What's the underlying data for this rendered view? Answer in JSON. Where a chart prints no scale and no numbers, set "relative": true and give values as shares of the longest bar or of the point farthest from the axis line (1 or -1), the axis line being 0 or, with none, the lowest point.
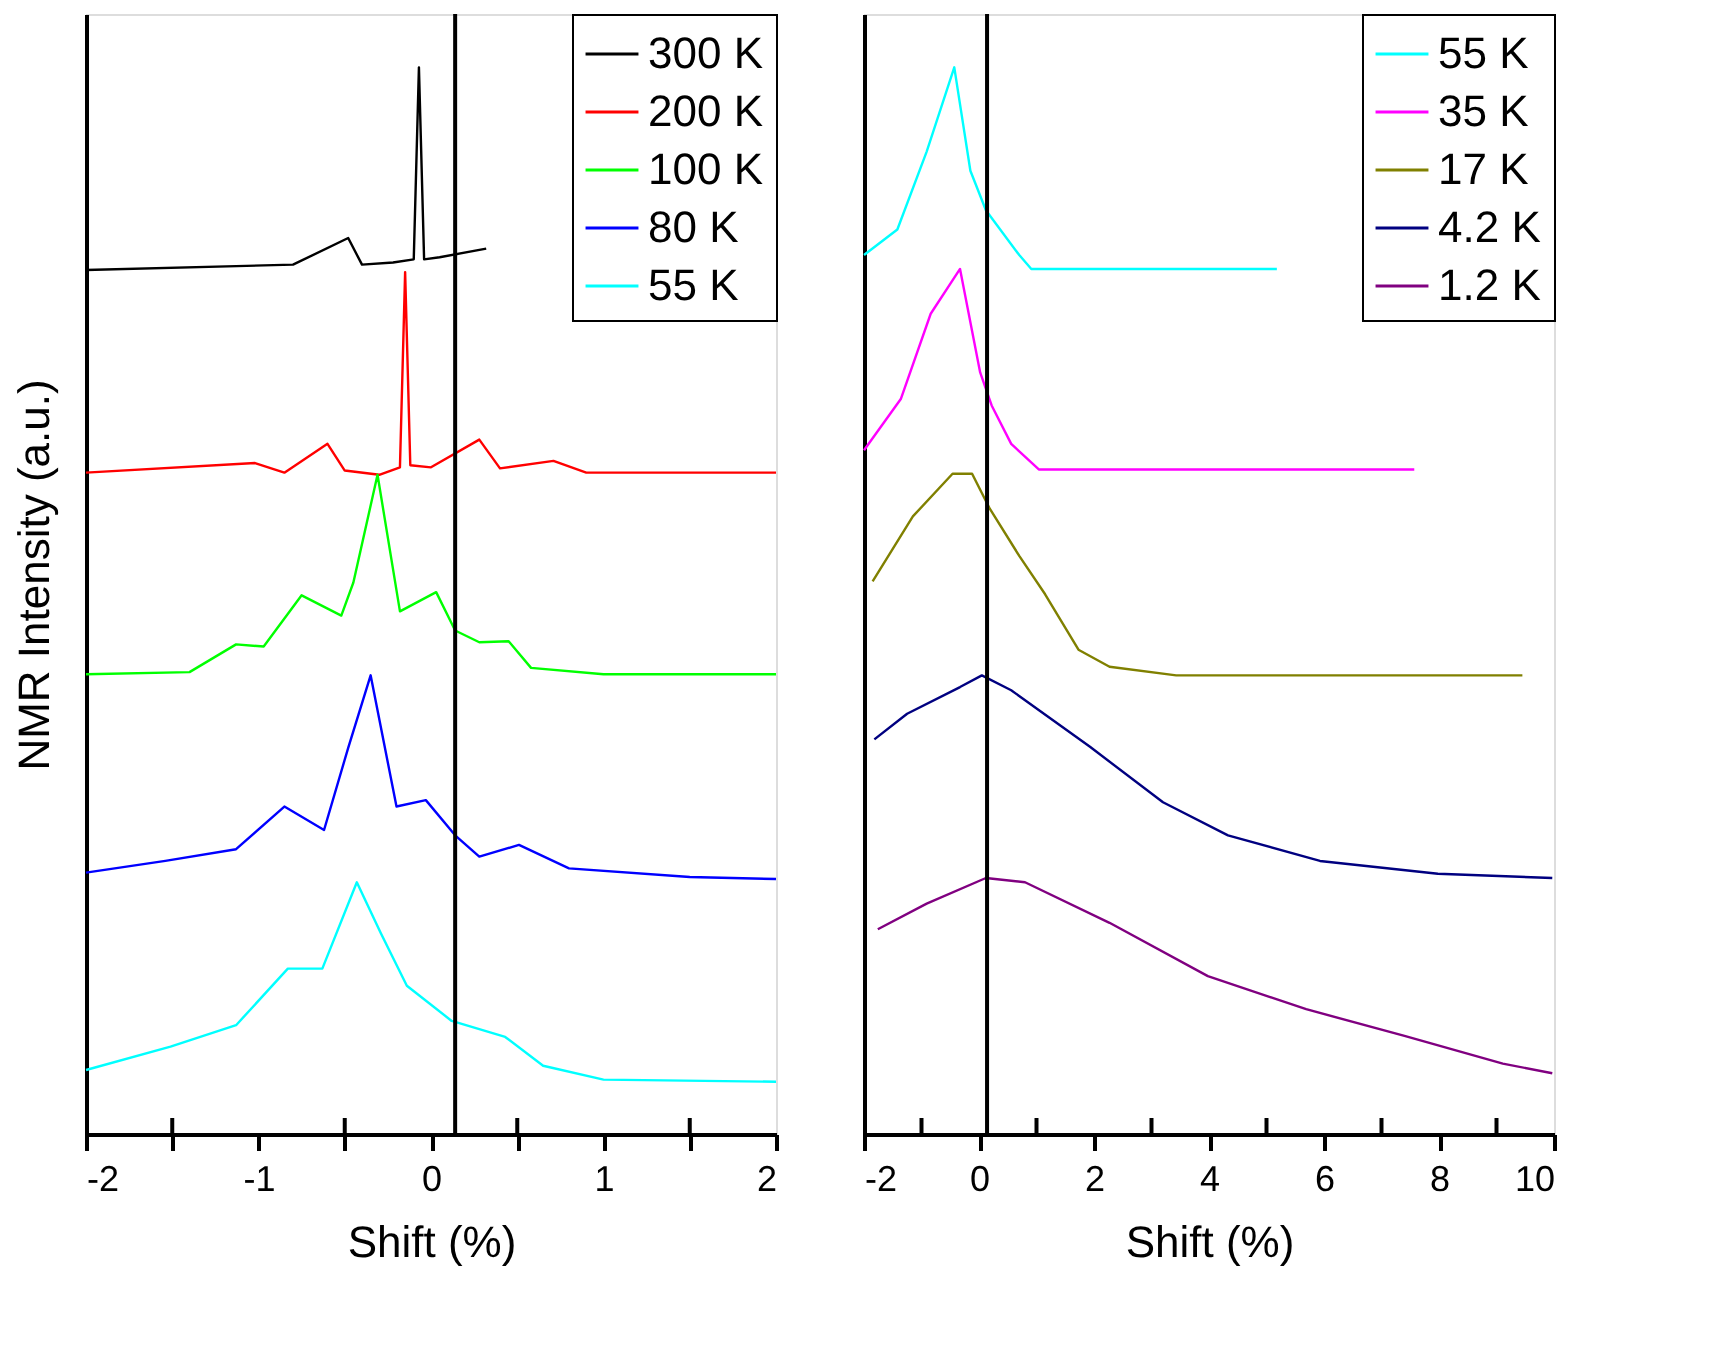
{
  "chart_data": [
    {
      "type": "line",
      "relative": true,
      "xlabel": "Shift (%)",
      "ylabel": "NMR Intensity (a.u.)",
      "xlim": [
        -2,
        2
      ],
      "xticks": [
        -2,
        {
          "value": -1.5,
          "label": null
        },
        -1,
        {
          "value": -0.5,
          "label": null
        },
        0,
        {
          "value": 0.5,
          "label": null
        },
        1,
        {
          "value": 1.5,
          "label": null
        },
        2
      ],
      "grid": false,
      "legend": "top right",
      "tick_labels": "x",
      "ref_lines": [
        {
          "axis": "x",
          "value": 0.14,
          "color": "#000000"
        }
      ],
      "series": [
        {
          "name": "300 K",
          "color": "#000000",
          "x": [
            -2,
            -0.8,
            -0.48,
            -0.4,
            -0.22,
            -0.1,
            -0.07,
            -0.04,
            0.05,
            0.32
          ],
          "values": [
            0.81,
            0.815,
            0.84,
            0.815,
            0.817,
            0.82,
            1.0,
            0.82,
            0.822,
            0.83
          ]
        },
        {
          "name": "200 K",
          "color": "#ff0000",
          "x": [
            -2,
            -1.02,
            -0.85,
            -0.6,
            -0.5,
            -0.3,
            -0.18,
            -0.15,
            -0.12,
            0.0,
            0.28,
            0.4,
            0.71,
            0.9,
            2.0
          ],
          "values": [
            0.62,
            0.629,
            0.62,
            0.647,
            0.622,
            0.618,
            0.625,
            0.808,
            0.627,
            0.625,
            0.651,
            0.624,
            0.631,
            0.62,
            0.62
          ]
        },
        {
          "name": "100 K",
          "color": "#00ff00",
          "x": [
            -2,
            -1.4,
            -1.13,
            -0.97,
            -0.75,
            -0.52,
            -0.45,
            -0.31,
            -0.18,
            0.03,
            0.14,
            0.28,
            0.45,
            0.58,
            1.0,
            2.0
          ],
          "values": [
            0.431,
            0.433,
            0.459,
            0.457,
            0.505,
            0.486,
            0.517,
            0.618,
            0.49,
            0.508,
            0.472,
            0.461,
            0.462,
            0.437,
            0.431,
            0.431
          ]
        },
        {
          "name": "80 K",
          "color": "#0000ff",
          "x": [
            -2,
            -1.54,
            -1.13,
            -0.85,
            -0.62,
            -0.48,
            -0.35,
            -0.2,
            -0.03,
            0.14,
            0.28,
            0.51,
            0.8,
            1.5,
            2.0
          ],
          "values": [
            0.245,
            0.256,
            0.267,
            0.307,
            0.285,
            0.362,
            0.43,
            0.307,
            0.313,
            0.28,
            0.26,
            0.271,
            0.249,
            0.241,
            0.239
          ]
        },
        {
          "name": "55 K",
          "color": "#00ffff",
          "x": [
            -2,
            -1.51,
            -1.13,
            -0.83,
            -0.63,
            -0.43,
            -0.29,
            -0.14,
            0.12,
            0.43,
            0.65,
            1.0,
            2.0
          ],
          "values": [
            0.06,
            0.082,
            0.102,
            0.155,
            0.155,
            0.236,
            0.188,
            0.139,
            0.106,
            0.091,
            0.064,
            0.051,
            0.049
          ]
        }
      ]
    },
    {
      "type": "line",
      "relative": true,
      "xlabel": "Shift (%)",
      "xlim": [
        -2,
        10
      ],
      "xticks": [
        -2,
        {
          "value": -1,
          "label": null
        },
        0,
        {
          "value": 1,
          "label": null
        },
        2,
        {
          "value": 3,
          "label": null
        },
        4,
        {
          "value": 5,
          "label": null
        },
        6,
        {
          "value": 7,
          "label": null
        },
        8,
        {
          "value": 9,
          "label": null
        },
        10
      ],
      "grid": false,
      "legend": "top right",
      "tick_labels": "x",
      "ref_lines": [
        {
          "axis": "x",
          "value": 0.14,
          "color": "#000000"
        }
      ],
      "series": [
        {
          "name": "55 K",
          "color": "#00ffff",
          "x": [
            -2,
            -1.42,
            -0.91,
            -0.43,
            -0.15,
            0.12,
            0.7,
            0.91,
            5.18
          ],
          "values": [
            0.824,
            0.848,
            0.921,
            1.0,
            0.903,
            0.866,
            0.824,
            0.811,
            0.811
          ]
        },
        {
          "name": "35 K",
          "color": "#ff00ff",
          "x": [
            -2,
            -1.36,
            -0.84,
            -0.33,
            0.02,
            0.22,
            0.56,
            1.04,
            7.57
          ],
          "values": [
            0.641,
            0.689,
            0.769,
            0.811,
            0.714,
            0.683,
            0.647,
            0.623,
            0.623
          ]
        },
        {
          "name": "17 K",
          "color": "#808000",
          "x": [
            -1.85,
            -1.15,
            -0.46,
            -0.12,
            0.19,
            0.7,
            1.15,
            1.73,
            2.27,
            3.43,
            9.45
          ],
          "values": [
            0.518,
            0.579,
            0.619,
            0.619,
            0.586,
            0.542,
            0.506,
            0.454,
            0.438,
            0.43,
            0.43
          ]
        },
        {
          "name": "4.2 K",
          "color": "#000080",
          "x": [
            -1.82,
            -1.25,
            -0.33,
            0.05,
            0.56,
            1.93,
            3.2,
            4.33,
            5.93,
            7.98,
            9.97
          ],
          "values": [
            0.37,
            0.394,
            0.419,
            0.43,
            0.416,
            0.363,
            0.311,
            0.28,
            0.256,
            0.244,
            0.24
          ]
        },
        {
          "name": "1.2 K",
          "color": "#800080",
          "x": [
            -1.76,
            -0.91,
            0.12,
            0.8,
            2.27,
            3.98,
            5.69,
            7.4,
            9.11,
            9.97
          ],
          "values": [
            0.192,
            0.216,
            0.24,
            0.236,
            0.198,
            0.148,
            0.117,
            0.092,
            0.066,
            0.057
          ]
        }
      ]
    }
  ]
}
